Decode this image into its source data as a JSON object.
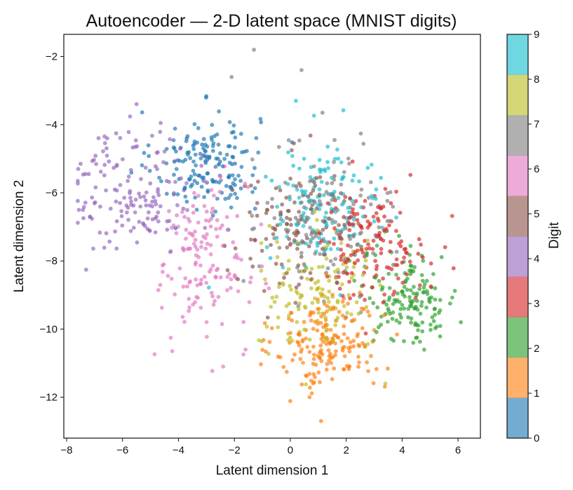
{
  "chart_data": {
    "type": "scatter",
    "title": "Autoencoder — 2-D latent space (MNIST digits)",
    "xlabel": "Latent dimension 1",
    "ylabel": "Latent dimension 2",
    "xlim": [
      -8.1,
      6.8
    ],
    "ylim": [
      -13.2,
      -1.35
    ],
    "xticks": [
      -8,
      -6,
      -4,
      -2,
      0,
      2,
      4,
      6
    ],
    "yticks": [
      -2,
      -4,
      -6,
      -8,
      -10,
      -12
    ],
    "grid": false,
    "colorbar": {
      "label": "Digit",
      "ticks": [
        0,
        1,
        2,
        3,
        4,
        5,
        6,
        7,
        8,
        9
      ],
      "range": [
        0,
        9
      ],
      "colors": [
        "#1f77b4",
        "#ff7f0e",
        "#2ca02c",
        "#d62728",
        "#9467bd",
        "#8c564b",
        "#e377c2",
        "#7f7f7f",
        "#bcbd22",
        "#17becf"
      ]
    },
    "series": [
      {
        "name": "0",
        "color": "#1f77b4",
        "count": 170,
        "center": [
          -3.0,
          -5.1
        ],
        "spread": [
          0.95,
          0.75
        ]
      },
      {
        "name": "1",
        "color": "#ff7f0e",
        "count": 180,
        "center": [
          1.4,
          -10.4
        ],
        "spread": [
          0.95,
          0.75
        ]
      },
      {
        "name": "2",
        "color": "#2ca02c",
        "count": 150,
        "center": [
          4.3,
          -9.1
        ],
        "spread": [
          0.85,
          0.7
        ]
      },
      {
        "name": "3",
        "color": "#d62728",
        "count": 150,
        "center": [
          2.9,
          -7.5
        ],
        "spread": [
          1.0,
          0.8
        ]
      },
      {
        "name": "4",
        "color": "#9467bd",
        "count": 150,
        "center": [
          -5.6,
          -5.9
        ],
        "spread": [
          1.1,
          0.95
        ]
      },
      {
        "name": "5",
        "color": "#8c564b",
        "count": 120,
        "center": [
          0.3,
          -7.0
        ],
        "spread": [
          1.15,
          0.95
        ]
      },
      {
        "name": "6",
        "color": "#e377c2",
        "count": 150,
        "center": [
          -3.1,
          -8.0
        ],
        "spread": [
          0.8,
          1.2
        ]
      },
      {
        "name": "7",
        "color": "#7f7f7f",
        "count": 130,
        "center": [
          1.3,
          -6.8
        ],
        "spread": [
          1.2,
          1.05
        ]
      },
      {
        "name": "8",
        "color": "#bcbd22",
        "count": 130,
        "center": [
          1.1,
          -8.9
        ],
        "spread": [
          1.1,
          0.9
        ]
      },
      {
        "name": "9",
        "color": "#17becf",
        "count": 140,
        "center": [
          1.2,
          -6.4
        ],
        "spread": [
          1.05,
          0.85
        ]
      }
    ],
    "outliers": [
      {
        "x": -1.3,
        "y": -1.8,
        "digit": 7
      },
      {
        "x": 0.4,
        "y": -2.4,
        "digit": 7
      },
      {
        "x": -2.1,
        "y": -2.6,
        "digit": 7
      },
      {
        "x": 0.2,
        "y": -3.3,
        "digit": 9
      },
      {
        "x": 1.15,
        "y": -3.65,
        "digit": 7
      },
      {
        "x": -7.5,
        "y": -5.15,
        "digit": 4
      },
      {
        "x": -5.5,
        "y": -3.4,
        "digit": 4
      },
      {
        "x": -2.4,
        "y": -11.1,
        "digit": 6
      },
      {
        "x": 1.1,
        "y": -12.7,
        "digit": 1
      },
      {
        "x": 3.4,
        "y": -11.6,
        "digit": 8
      },
      {
        "x": 6.1,
        "y": -9.8,
        "digit": 2
      },
      {
        "x": -1.6,
        "y": -10.6,
        "digit": 6
      }
    ]
  }
}
